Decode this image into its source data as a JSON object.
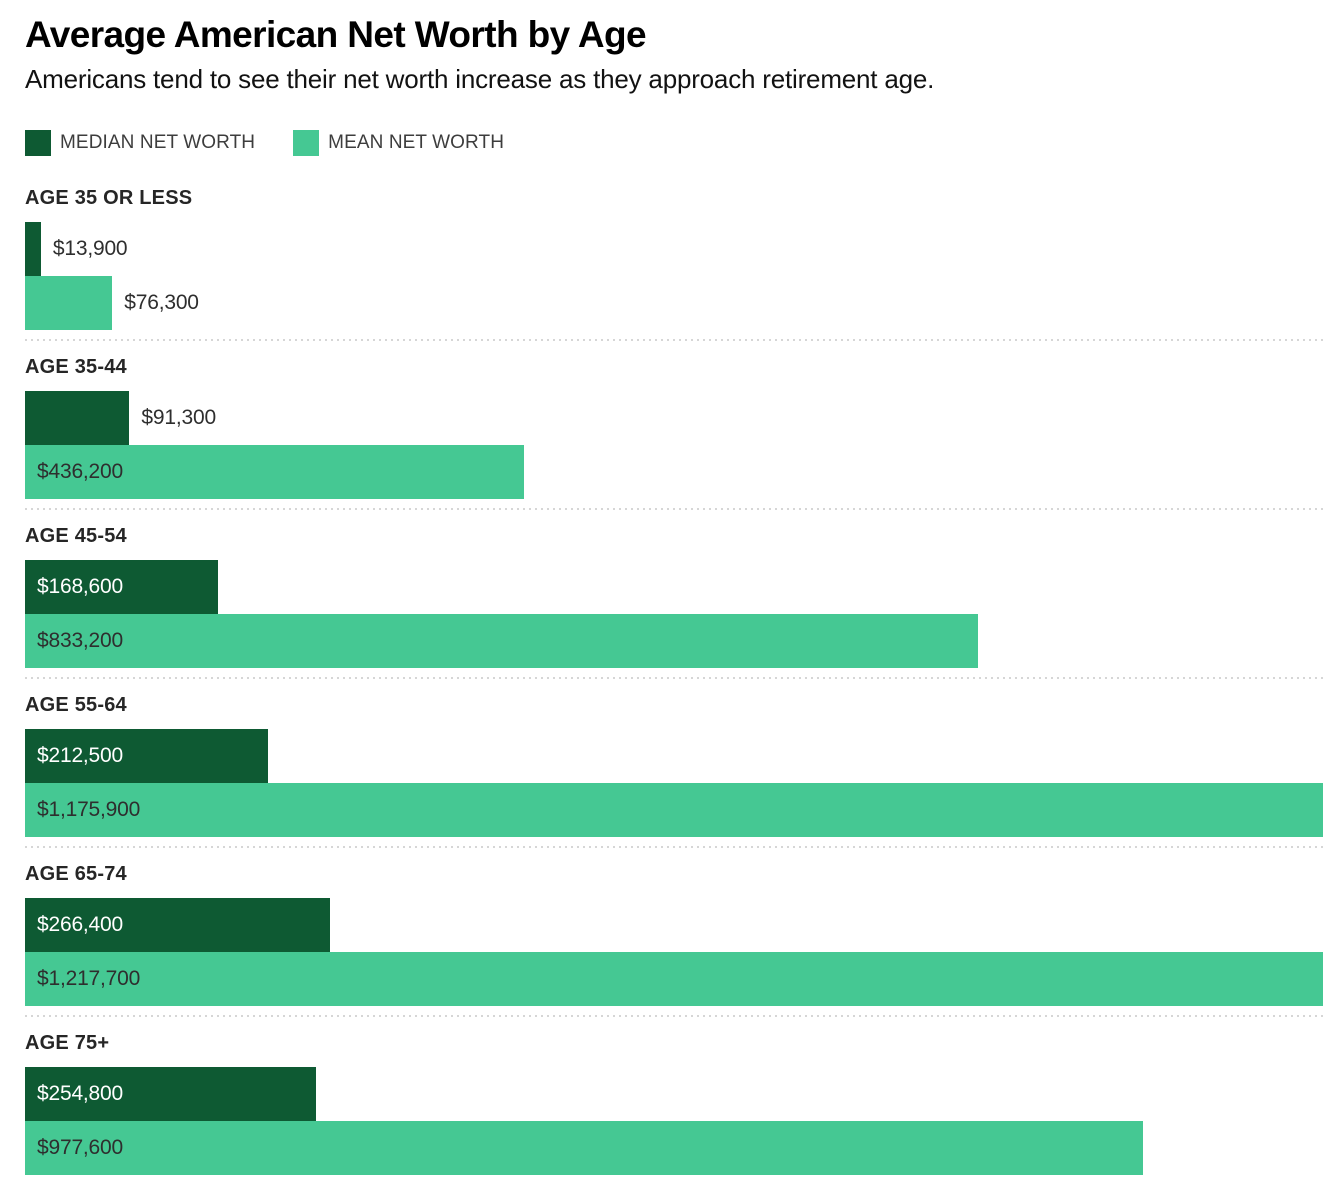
{
  "header": {
    "title": "Average American Net Worth by Age",
    "subtitle": "Americans tend to see their net worth increase as they approach retirement age."
  },
  "legend": [
    {
      "label": "MEDIAN NET WORTH",
      "color": "#0e5a33"
    },
    {
      "label": "MEAN NET WORTH",
      "color": "#45c893"
    }
  ],
  "colors": {
    "median_bar": "#0e5a33",
    "mean_bar": "#45c893",
    "label_on_median": "#ffffff",
    "label_on_mean": "#2e2e2e",
    "label_outside": "#2e2e2e",
    "separator": "#d6d6d6"
  },
  "chart_data": {
    "type": "bar",
    "orientation": "horizontal",
    "title": "Average American Net Worth by Age",
    "subtitle": "Americans tend to see their net worth increase as they approach retirement age.",
    "categories": [
      "AGE 35 OR LESS",
      "AGE 35-44",
      "AGE 45-54",
      "AGE 55-64",
      "AGE 65-74",
      "AGE 75+"
    ],
    "series": [
      {
        "name": "MEDIAN NET WORTH",
        "color": "#0e5a33",
        "text_color": "#ffffff",
        "values": [
          13900,
          91300,
          168600,
          212500,
          266400,
          254800
        ],
        "labels": [
          "$13,900",
          "$91,300",
          "$168,600",
          "$212,500",
          "$266,400",
          "$254,800"
        ]
      },
      {
        "name": "MEAN NET WORTH",
        "color": "#45c893",
        "text_color": "#2e2e2e",
        "values": [
          76300,
          436200,
          833200,
          1175900,
          1217700,
          977600
        ],
        "labels": [
          "$76,300",
          "$436,200",
          "$833,200",
          "$1,175,900",
          "$1,217,700",
          "$977,600"
        ]
      }
    ],
    "value_at_full_width": 1134800,
    "bars_clipped_at_right_edge": [
      "$1,175,900",
      "$1,217,700"
    ],
    "grid": false,
    "legend_position": "top-left",
    "axis_labels_shown": false
  }
}
